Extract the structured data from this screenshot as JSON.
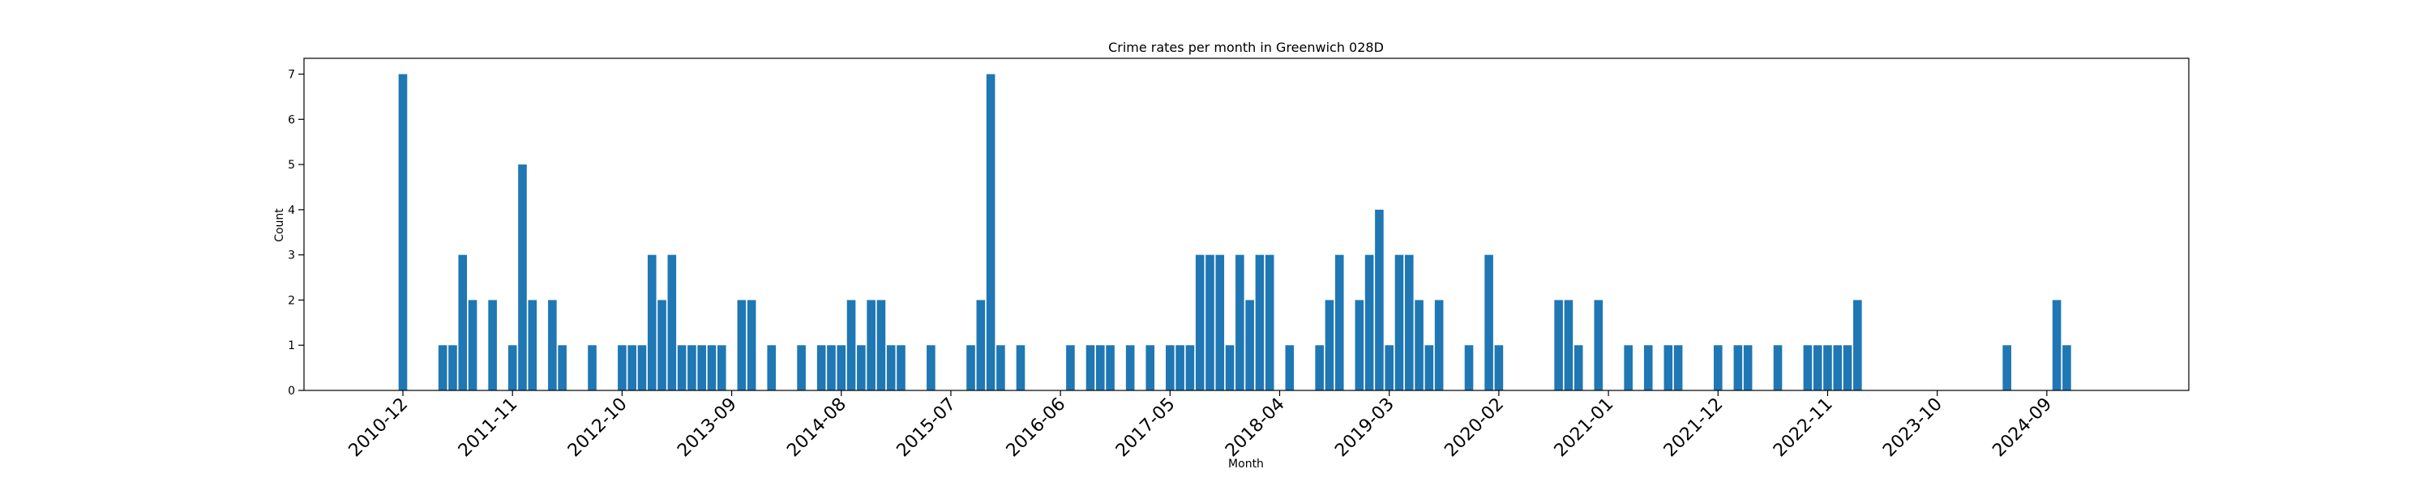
{
  "chart_data": {
    "type": "bar",
    "title": "Crime rates per month in Greenwich 028D",
    "xlabel": "Month",
    "ylabel": "Count",
    "ylim": [
      0,
      7.35
    ],
    "yticks": [
      0,
      1,
      2,
      3,
      4,
      5,
      6,
      7
    ],
    "xtick_labels": [
      "2010-12",
      "2011-11",
      "2012-10",
      "2013-09",
      "2014-08",
      "2015-07",
      "2016-06",
      "2017-05",
      "2018-04",
      "2019-03",
      "2020-02",
      "2021-01",
      "2021-12",
      "2022-11",
      "2023-10",
      "2024-09"
    ],
    "grid": false,
    "color": "#1f77b4",
    "categories": [
      "2010-12",
      "2011-04",
      "2011-05",
      "2011-06",
      "2011-07",
      "2011-09",
      "2011-11",
      "2011-12",
      "2012-01",
      "2012-03",
      "2012-04",
      "2012-07",
      "2012-10",
      "2012-11",
      "2012-12",
      "2013-01",
      "2013-02",
      "2013-03",
      "2013-04",
      "2013-05",
      "2013-06",
      "2013-07",
      "2013-08",
      "2013-10",
      "2013-11",
      "2014-01",
      "2014-04",
      "2014-06",
      "2014-07",
      "2014-08",
      "2014-09",
      "2014-10",
      "2014-11",
      "2014-12",
      "2015-01",
      "2015-02",
      "2015-05",
      "2015-09",
      "2015-10",
      "2015-11",
      "2015-12",
      "2016-02",
      "2016-07",
      "2016-09",
      "2016-10",
      "2016-11",
      "2017-01",
      "2017-03",
      "2017-05",
      "2017-06",
      "2017-07",
      "2017-08",
      "2017-09",
      "2017-10",
      "2017-11",
      "2017-12",
      "2018-01",
      "2018-02",
      "2018-03",
      "2018-05",
      "2018-08",
      "2018-09",
      "2018-10",
      "2018-12",
      "2019-01",
      "2019-02",
      "2019-03",
      "2019-04",
      "2019-05",
      "2019-06",
      "2019-07",
      "2019-08",
      "2019-11",
      "2020-01",
      "2020-02",
      "2020-08",
      "2020-09",
      "2020-10",
      "2020-12",
      "2021-03",
      "2021-05",
      "2021-07",
      "2021-08",
      "2021-12",
      "2022-02",
      "2022-03",
      "2022-06",
      "2022-09",
      "2022-10",
      "2022-11",
      "2022-12",
      "2023-01",
      "2023-02",
      "2024-05",
      "2024-10",
      "2024-11"
    ],
    "values": [
      7,
      1,
      1,
      3,
      2,
      2,
      1,
      5,
      2,
      2,
      1,
      1,
      1,
      1,
      1,
      3,
      2,
      3,
      1,
      1,
      1,
      1,
      1,
      2,
      2,
      1,
      1,
      1,
      1,
      1,
      2,
      1,
      2,
      2,
      1,
      1,
      1,
      1,
      2,
      7,
      1,
      1,
      1,
      1,
      1,
      1,
      1,
      1,
      1,
      1,
      1,
      3,
      3,
      3,
      1,
      3,
      2,
      3,
      3,
      1,
      1,
      2,
      3,
      2,
      3,
      4,
      1,
      3,
      3,
      2,
      1,
      2,
      1,
      3,
      1,
      2,
      2,
      1,
      2,
      1,
      1,
      1,
      1,
      1,
      1,
      1,
      1,
      1,
      1,
      1,
      1,
      1,
      2,
      1,
      2,
      1
    ]
  }
}
